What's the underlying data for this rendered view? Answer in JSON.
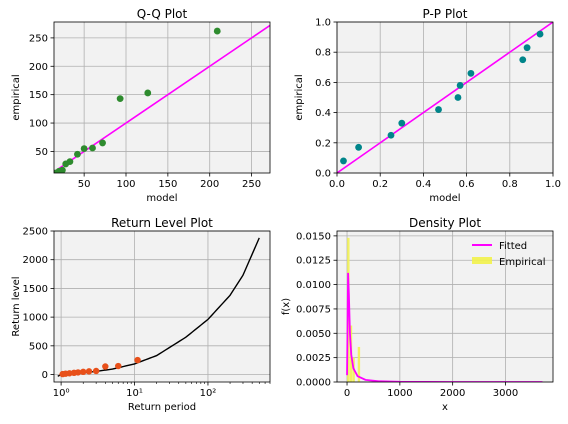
{
  "colors": {
    "background": "#f2f2f2",
    "grid": "#b0b0b0",
    "qq_points": "#2e8b2e",
    "pp_points": "#00858a",
    "diag_line": "#ff00ff",
    "rl_curve": "#000000",
    "rl_points": "#e8501a",
    "fitted": "#ff00ff",
    "empirical": "#f2f24a"
  },
  "chart_data": [
    {
      "type": "scatter",
      "title": "Q-Q Plot",
      "xlabel": "model",
      "ylabel": "empirical",
      "xlim": [
        14,
        272
      ],
      "ylim": [
        12,
        278
      ],
      "xticks": [
        50,
        100,
        150,
        200,
        250
      ],
      "yticks": [
        50,
        100,
        150,
        200,
        250
      ],
      "grid": true,
      "points": [
        [
          16,
          12
        ],
        [
          20,
          15
        ],
        [
          24,
          17
        ],
        [
          28,
          28
        ],
        [
          33,
          32
        ],
        [
          42,
          45
        ],
        [
          50,
          55
        ],
        [
          60,
          56
        ],
        [
          72,
          65
        ],
        [
          93,
          143
        ],
        [
          126,
          153
        ],
        [
          209,
          262
        ]
      ],
      "reference_line": [
        [
          14,
          14
        ],
        [
          272,
          272
        ]
      ]
    },
    {
      "type": "scatter",
      "title": "P-P Plot",
      "xlabel": "model",
      "ylabel": "empirical",
      "xlim": [
        0,
        1
      ],
      "ylim": [
        0,
        1
      ],
      "xticks": [
        0.0,
        0.2,
        0.4,
        0.6,
        0.8,
        1.0
      ],
      "yticks": [
        0.0,
        0.2,
        0.4,
        0.6,
        0.8,
        1.0
      ],
      "grid": true,
      "points": [
        [
          0.03,
          0.08
        ],
        [
          0.1,
          0.17
        ],
        [
          0.25,
          0.25
        ],
        [
          0.3,
          0.33
        ],
        [
          0.47,
          0.42
        ],
        [
          0.56,
          0.5
        ],
        [
          0.57,
          0.58
        ],
        [
          0.62,
          0.66
        ],
        [
          0.86,
          0.75
        ],
        [
          0.88,
          0.83
        ],
        [
          0.94,
          0.92
        ]
      ],
      "reference_line": [
        [
          0,
          0
        ],
        [
          1,
          1
        ]
      ]
    },
    {
      "type": "line",
      "title": "Return Level Plot",
      "xlabel": "Return period",
      "ylabel": "Return level",
      "xscale": "log",
      "xlim": [
        0.8,
        700
      ],
      "ylim": [
        -130,
        2500
      ],
      "xticks": [
        {
          "value": 1,
          "label": "10⁰"
        },
        {
          "value": 10,
          "label": "10¹"
        },
        {
          "value": 100,
          "label": "10²"
        }
      ],
      "yticks": [
        0,
        500,
        1000,
        1500,
        2000,
        2500
      ],
      "grid": true,
      "curve": [
        [
          0.9,
          -30
        ],
        [
          1,
          0
        ],
        [
          1.5,
          15
        ],
        [
          2,
          30
        ],
        [
          3,
          55
        ],
        [
          5,
          95
        ],
        [
          10,
          185
        ],
        [
          20,
          330
        ],
        [
          50,
          650
        ],
        [
          100,
          960
        ],
        [
          200,
          1380
        ],
        [
          300,
          1730
        ],
        [
          500,
          2380
        ]
      ],
      "points": [
        [
          1.05,
          8
        ],
        [
          1.15,
          15
        ],
        [
          1.3,
          22
        ],
        [
          1.5,
          30
        ],
        [
          1.7,
          37
        ],
        [
          2.0,
          47
        ],
        [
          2.4,
          55
        ],
        [
          3.0,
          62
        ],
        [
          4.0,
          140
        ],
        [
          6.0,
          148
        ],
        [
          11,
          252
        ]
      ]
    },
    {
      "type": "line",
      "title": "Density Plot",
      "xlabel": "x",
      "ylabel": "f(x)",
      "xlim": [
        -190,
        3900
      ],
      "ylim": [
        0,
        0.0155
      ],
      "xticks": [
        0,
        1000,
        2000,
        3000
      ],
      "yticks": [
        {
          "value": 0,
          "label": "0.0000"
        },
        {
          "value": 0.0025,
          "label": "0.0025"
        },
        {
          "value": 0.005,
          "label": "0.0050"
        },
        {
          "value": 0.0075,
          "label": "0.0075"
        },
        {
          "value": 0.01,
          "label": "0.0100"
        },
        {
          "value": 0.0125,
          "label": "0.0125"
        },
        {
          "value": 0.015,
          "label": "0.0150"
        }
      ],
      "grid": true,
      "legend_position": "top-right",
      "series": [
        {
          "name": "Fitted",
          "points": [
            [
              0,
              0.0007
            ],
            [
              10,
              0.006
            ],
            [
              20,
              0.0112
            ],
            [
              35,
              0.009
            ],
            [
              55,
              0.005
            ],
            [
              80,
              0.0028
            ],
            [
              120,
              0.0014
            ],
            [
              200,
              0.0006
            ],
            [
              350,
              0.00022
            ],
            [
              600,
              8e-05
            ],
            [
              1000,
              2e-05
            ],
            [
              2000,
              0.0
            ],
            [
              3700,
              0.0
            ]
          ]
        },
        {
          "name": "Empirical",
          "bins": [
            [
              0,
              50,
              0.0148
            ],
            [
              50,
              100,
              0.0058
            ],
            [
              100,
              150,
              0.0025
            ],
            [
              150,
              200,
              0.0
            ],
            [
              200,
              250,
              0.0036
            ],
            [
              250,
              300,
              0.0
            ]
          ]
        }
      ]
    }
  ]
}
